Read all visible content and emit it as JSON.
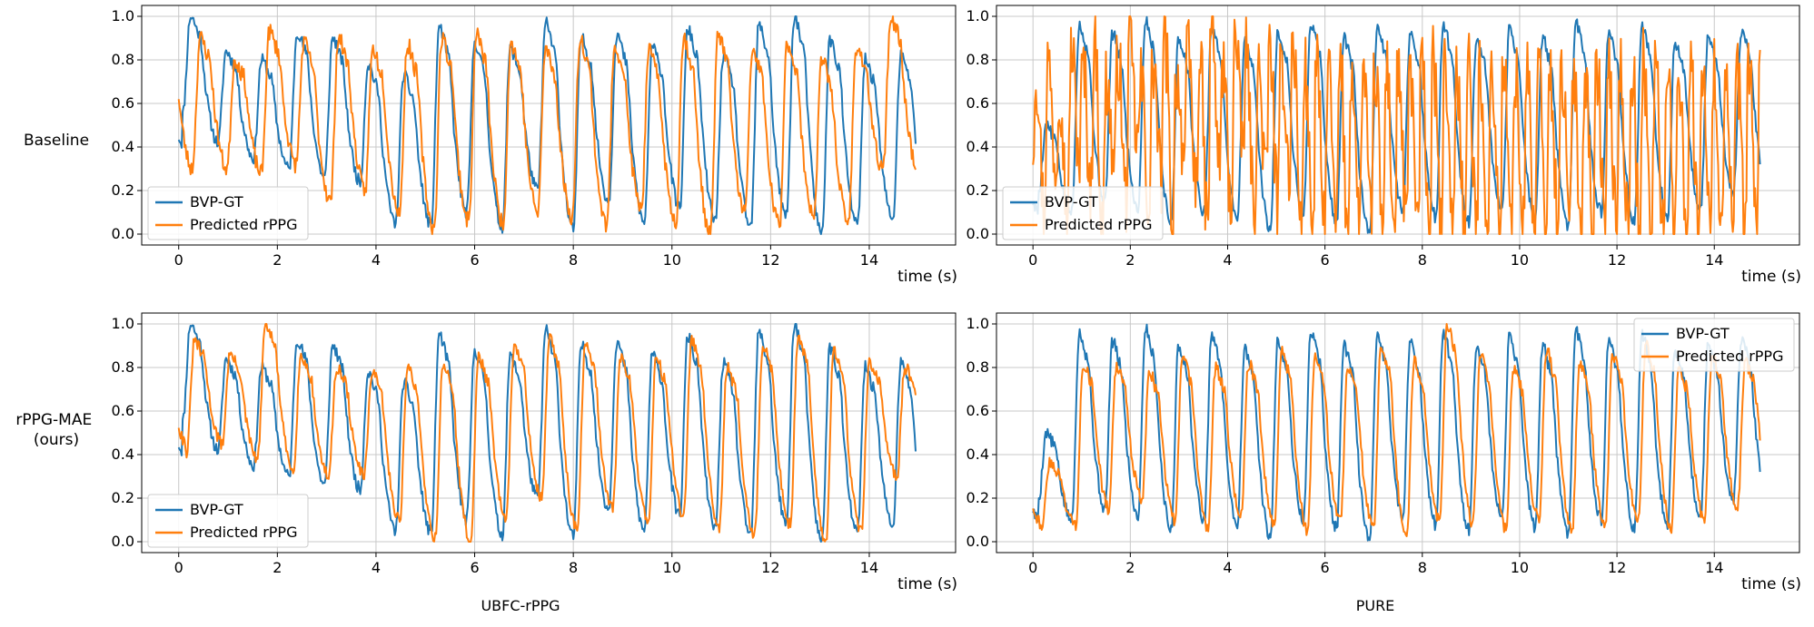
{
  "figure": {
    "row_labels": [
      "Baseline",
      "rPPG-MAE\n(ours)"
    ],
    "column_captions": [
      "UBFC-rPPG",
      "PURE"
    ]
  },
  "colors": {
    "gt": "#1f77b4",
    "pred": "#ff7f0e",
    "grid": "#c8c8c8",
    "axis": "#000000"
  },
  "chart_data": [
    {
      "type": "line",
      "title": "",
      "row": "Baseline",
      "dataset": "UBFC-rPPG",
      "xlabel": "time (s)",
      "ylabel": "",
      "xlim": [
        -0.75,
        15.75
      ],
      "ylim": [
        -0.05,
        1.05
      ],
      "xticks": [
        0,
        2,
        4,
        6,
        8,
        10,
        12,
        14
      ],
      "xtick_labels": [
        "0",
        "2",
        "4",
        "6",
        "8",
        "10",
        "12",
        "14"
      ],
      "yticks": [
        0,
        0.2,
        0.4,
        0.6,
        0.8,
        1.0
      ],
      "ytick_labels": [
        "0.0",
        "0.2",
        "0.4",
        "0.6",
        "0.8",
        "1.0"
      ],
      "grid": true,
      "legend": "lower-left",
      "series": [
        {
          "name": "BVP-GT",
          "color": "#1f77b4",
          "period": 0.72,
          "phase": 0.08,
          "noise": 0.03,
          "seed": 11,
          "peaks": [
            1.0,
            0.84,
            0.8,
            0.93,
            0.9,
            0.78,
            0.73,
            0.95,
            0.88,
            0.85,
            0.97,
            0.9,
            0.92,
            0.86,
            0.94,
            0.82,
            0.96,
            1.0,
            0.89,
            0.8,
            0.82
          ],
          "troughs": [
            0.55,
            0.42,
            0.35,
            0.3,
            0.26,
            0.24,
            0.05,
            0.04,
            0.1,
            0.03,
            0.2,
            0.02,
            0.15,
            0.05,
            0.12,
            0.06,
            0.03,
            0.08,
            0.0,
            0.04,
            0.07
          ]
        },
        {
          "name": "Predicted rPPG",
          "color": "#ff7f0e",
          "period": 0.7,
          "phase": 0.28,
          "noise": 0.04,
          "seed": 23,
          "peaks": [
            0.9,
            0.8,
            0.93,
            0.88,
            0.9,
            0.85,
            0.87,
            0.9,
            0.92,
            0.88,
            0.85,
            0.9,
            0.87,
            0.84,
            0.9,
            0.92,
            0.85,
            0.88,
            0.8,
            0.86,
            1.0
          ],
          "troughs": [
            0.33,
            0.3,
            0.28,
            0.32,
            0.15,
            0.2,
            0.1,
            0.02,
            0.06,
            0.05,
            0.1,
            0.08,
            0.04,
            0.12,
            0.06,
            0.0,
            0.1,
            0.04,
            0.09,
            0.05,
            0.3
          ]
        }
      ]
    },
    {
      "type": "line",
      "title": "",
      "row": "Baseline",
      "dataset": "PURE",
      "xlabel": "time (s)",
      "ylabel": "",
      "xlim": [
        -0.75,
        15.75
      ],
      "ylim": [
        -0.05,
        1.05
      ],
      "xticks": [
        0,
        2,
        4,
        6,
        8,
        10,
        12,
        14
      ],
      "xtick_labels": [
        "0",
        "2",
        "4",
        "6",
        "8",
        "10",
        "12",
        "14"
      ],
      "yticks": [
        0,
        0.2,
        0.4,
        0.6,
        0.8,
        1.0
      ],
      "ytick_labels": [
        "0.0",
        "0.2",
        "0.4",
        "0.6",
        "0.8",
        "1.0"
      ],
      "grid": true,
      "legend": "lower-left",
      "series": [
        {
          "name": "BVP-GT",
          "color": "#1f77b4",
          "period": 0.68,
          "phase": 0.12,
          "noise": 0.03,
          "seed": 5,
          "peaks": [
            0.5,
            0.96,
            0.92,
            0.98,
            0.9,
            0.95,
            0.88,
            0.93,
            0.97,
            0.9,
            0.95,
            0.92,
            0.96,
            0.89,
            0.94,
            0.9,
            0.97,
            0.92,
            0.95,
            0.88,
            0.9,
            0.93,
            0.6
          ],
          "troughs": [
            0.2,
            0.1,
            0.15,
            0.12,
            0.05,
            0.1,
            0.08,
            0.02,
            0.1,
            0.06,
            0.0,
            0.12,
            0.08,
            0.05,
            0.1,
            0.07,
            0.04,
            0.1,
            0.06,
            0.08,
            0.12,
            0.2,
            0.23
          ]
        },
        {
          "name": "Predicted rPPG",
          "color": "#ff7f0e",
          "period": 0.24,
          "phase": 0.0,
          "noise": 0.18,
          "seed": 97,
          "peaks": [
            0.75,
            0.8,
            0.7,
            0.85,
            0.78,
            0.9,
            0.72,
            0.82,
            0.88,
            0.7,
            0.8,
            0.92,
            0.75,
            0.85,
            0.8,
            1.0,
            0.78,
            0.9,
            0.82,
            0.76,
            0.88,
            0.8,
            0.9,
            0.78
          ],
          "troughs": [
            0.4,
            0.1,
            0.3,
            0.05,
            0.35,
            0.2,
            0.0,
            0.3,
            0.15,
            0.4,
            0.1,
            0.25,
            0.05,
            0.35,
            0.2,
            0.0,
            0.3,
            0.1,
            0.4,
            0.05,
            0.25,
            0.1,
            0.3,
            0.0
          ]
        }
      ]
    },
    {
      "type": "line",
      "title": "",
      "row": "rPPG-MAE (ours)",
      "dataset": "UBFC-rPPG",
      "xlabel": "time (s)",
      "ylabel": "",
      "xlim": [
        -0.75,
        15.75
      ],
      "ylim": [
        -0.05,
        1.05
      ],
      "xticks": [
        0,
        2,
        4,
        6,
        8,
        10,
        12,
        14
      ],
      "xtick_labels": [
        "0",
        "2",
        "4",
        "6",
        "8",
        "10",
        "12",
        "14"
      ],
      "yticks": [
        0,
        0.2,
        0.4,
        0.6,
        0.8,
        1.0
      ],
      "ytick_labels": [
        "0.0",
        "0.2",
        "0.4",
        "0.6",
        "0.8",
        "1.0"
      ],
      "grid": true,
      "legend": "lower-left",
      "series": [
        {
          "name": "BVP-GT",
          "color": "#1f77b4",
          "period": 0.72,
          "phase": 0.08,
          "noise": 0.03,
          "seed": 11,
          "peaks": [
            1.0,
            0.84,
            0.8,
            0.93,
            0.9,
            0.78,
            0.73,
            0.95,
            0.88,
            0.85,
            0.97,
            0.9,
            0.92,
            0.86,
            0.94,
            0.82,
            0.96,
            1.0,
            0.89,
            0.8,
            0.82
          ],
          "troughs": [
            0.55,
            0.42,
            0.35,
            0.3,
            0.26,
            0.24,
            0.05,
            0.04,
            0.1,
            0.03,
            0.2,
            0.02,
            0.15,
            0.05,
            0.12,
            0.06,
            0.03,
            0.08,
            0.0,
            0.04,
            0.07
          ]
        },
        {
          "name": "Predicted rPPG",
          "color": "#ff7f0e",
          "period": 0.72,
          "phase": 0.16,
          "noise": 0.03,
          "seed": 31,
          "peaks": [
            0.92,
            0.86,
            1.0,
            0.85,
            0.8,
            0.78,
            0.8,
            0.82,
            0.85,
            0.9,
            0.93,
            0.9,
            0.85,
            0.84,
            0.93,
            0.8,
            0.9,
            0.95,
            0.88,
            0.82,
            0.8
          ],
          "troughs": [
            0.4,
            0.45,
            0.38,
            0.33,
            0.3,
            0.3,
            0.1,
            0.02,
            0.0,
            0.1,
            0.2,
            0.05,
            0.15,
            0.1,
            0.12,
            0.07,
            0.03,
            0.08,
            0.0,
            0.05,
            0.3
          ]
        }
      ]
    },
    {
      "type": "line",
      "title": "",
      "row": "rPPG-MAE (ours)",
      "dataset": "PURE",
      "xlabel": "time (s)",
      "ylabel": "",
      "xlim": [
        -0.75,
        15.75
      ],
      "ylim": [
        -0.05,
        1.05
      ],
      "xticks": [
        0,
        2,
        4,
        6,
        8,
        10,
        12,
        14
      ],
      "xtick_labels": [
        "0",
        "2",
        "4",
        "6",
        "8",
        "10",
        "12",
        "14"
      ],
      "yticks": [
        0,
        0.2,
        0.4,
        0.6,
        0.8,
        1.0
      ],
      "ytick_labels": [
        "0.0",
        "0.2",
        "0.4",
        "0.6",
        "0.8",
        "1.0"
      ],
      "grid": true,
      "legend": "upper-right",
      "series": [
        {
          "name": "BVP-GT",
          "color": "#1f77b4",
          "period": 0.68,
          "phase": 0.12,
          "noise": 0.03,
          "seed": 5,
          "peaks": [
            0.5,
            0.96,
            0.92,
            0.98,
            0.9,
            0.95,
            0.88,
            0.93,
            0.97,
            0.9,
            0.95,
            0.92,
            0.96,
            0.89,
            0.94,
            0.9,
            0.97,
            0.92,
            0.95,
            0.88,
            0.9,
            0.93,
            0.6
          ],
          "troughs": [
            0.2,
            0.1,
            0.15,
            0.12,
            0.05,
            0.1,
            0.08,
            0.02,
            0.1,
            0.06,
            0.0,
            0.12,
            0.08,
            0.05,
            0.1,
            0.07,
            0.04,
            0.1,
            0.06,
            0.08,
            0.12,
            0.2,
            0.23
          ]
        },
        {
          "name": "Predicted rPPG",
          "color": "#ff7f0e",
          "period": 0.68,
          "phase": 0.2,
          "noise": 0.03,
          "seed": 43,
          "peaks": [
            0.36,
            0.82,
            0.8,
            0.78,
            0.85,
            0.8,
            0.82,
            0.88,
            0.85,
            0.8,
            0.9,
            0.83,
            1.0,
            0.85,
            0.8,
            0.88,
            0.82,
            0.86,
            0.9,
            0.8,
            0.85,
            0.82,
            0.75
          ],
          "troughs": [
            0.12,
            0.08,
            0.15,
            0.2,
            0.1,
            0.06,
            0.12,
            0.08,
            0.05,
            0.1,
            0.06,
            0.02,
            0.1,
            0.08,
            0.06,
            0.1,
            0.05,
            0.08,
            0.1,
            0.06,
            0.1,
            0.15,
            0.3
          ]
        }
      ]
    }
  ]
}
